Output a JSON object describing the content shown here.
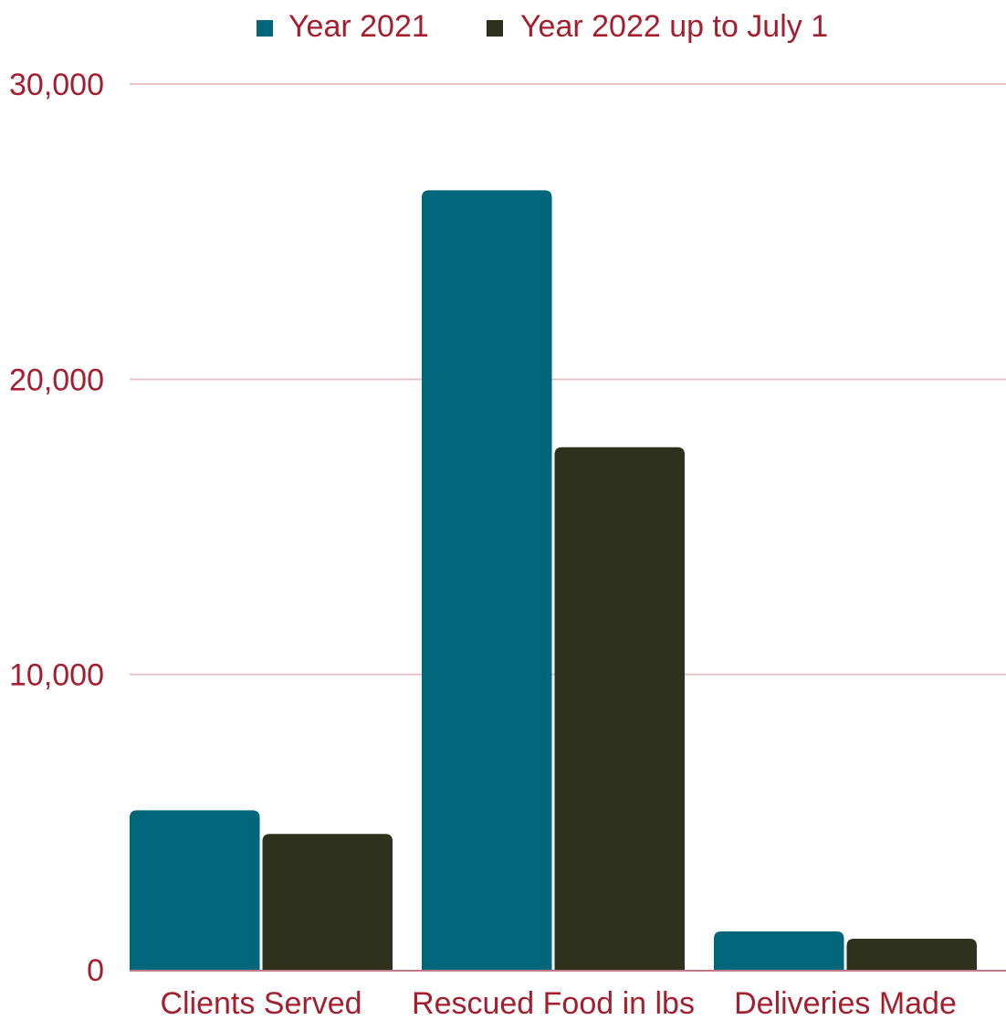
{
  "chart_data": {
    "type": "bar",
    "title": "",
    "xlabel": "",
    "ylabel": "",
    "categories": [
      "Clients Served",
      "Rescued Food in lbs",
      "Deliveries Made"
    ],
    "series": [
      {
        "name": "Year 2021",
        "values": [
          5400,
          26400,
          1300
        ],
        "color": "#00667a"
      },
      {
        "name": "Year 2022 up to July 1",
        "values": [
          4600,
          17700,
          1050
        ],
        "color": "#2e311c"
      }
    ],
    "ylim": [
      0,
      30000
    ],
    "yticks": [
      0,
      10000,
      20000,
      30000
    ],
    "ytick_labels": [
      "0",
      "10,000",
      "20,000",
      "30,000"
    ],
    "grid": true,
    "grid_color": "#e3c3c8",
    "axis_color": "#c07a86",
    "label_color": "#a51e2d",
    "legend_position": "top-center"
  }
}
